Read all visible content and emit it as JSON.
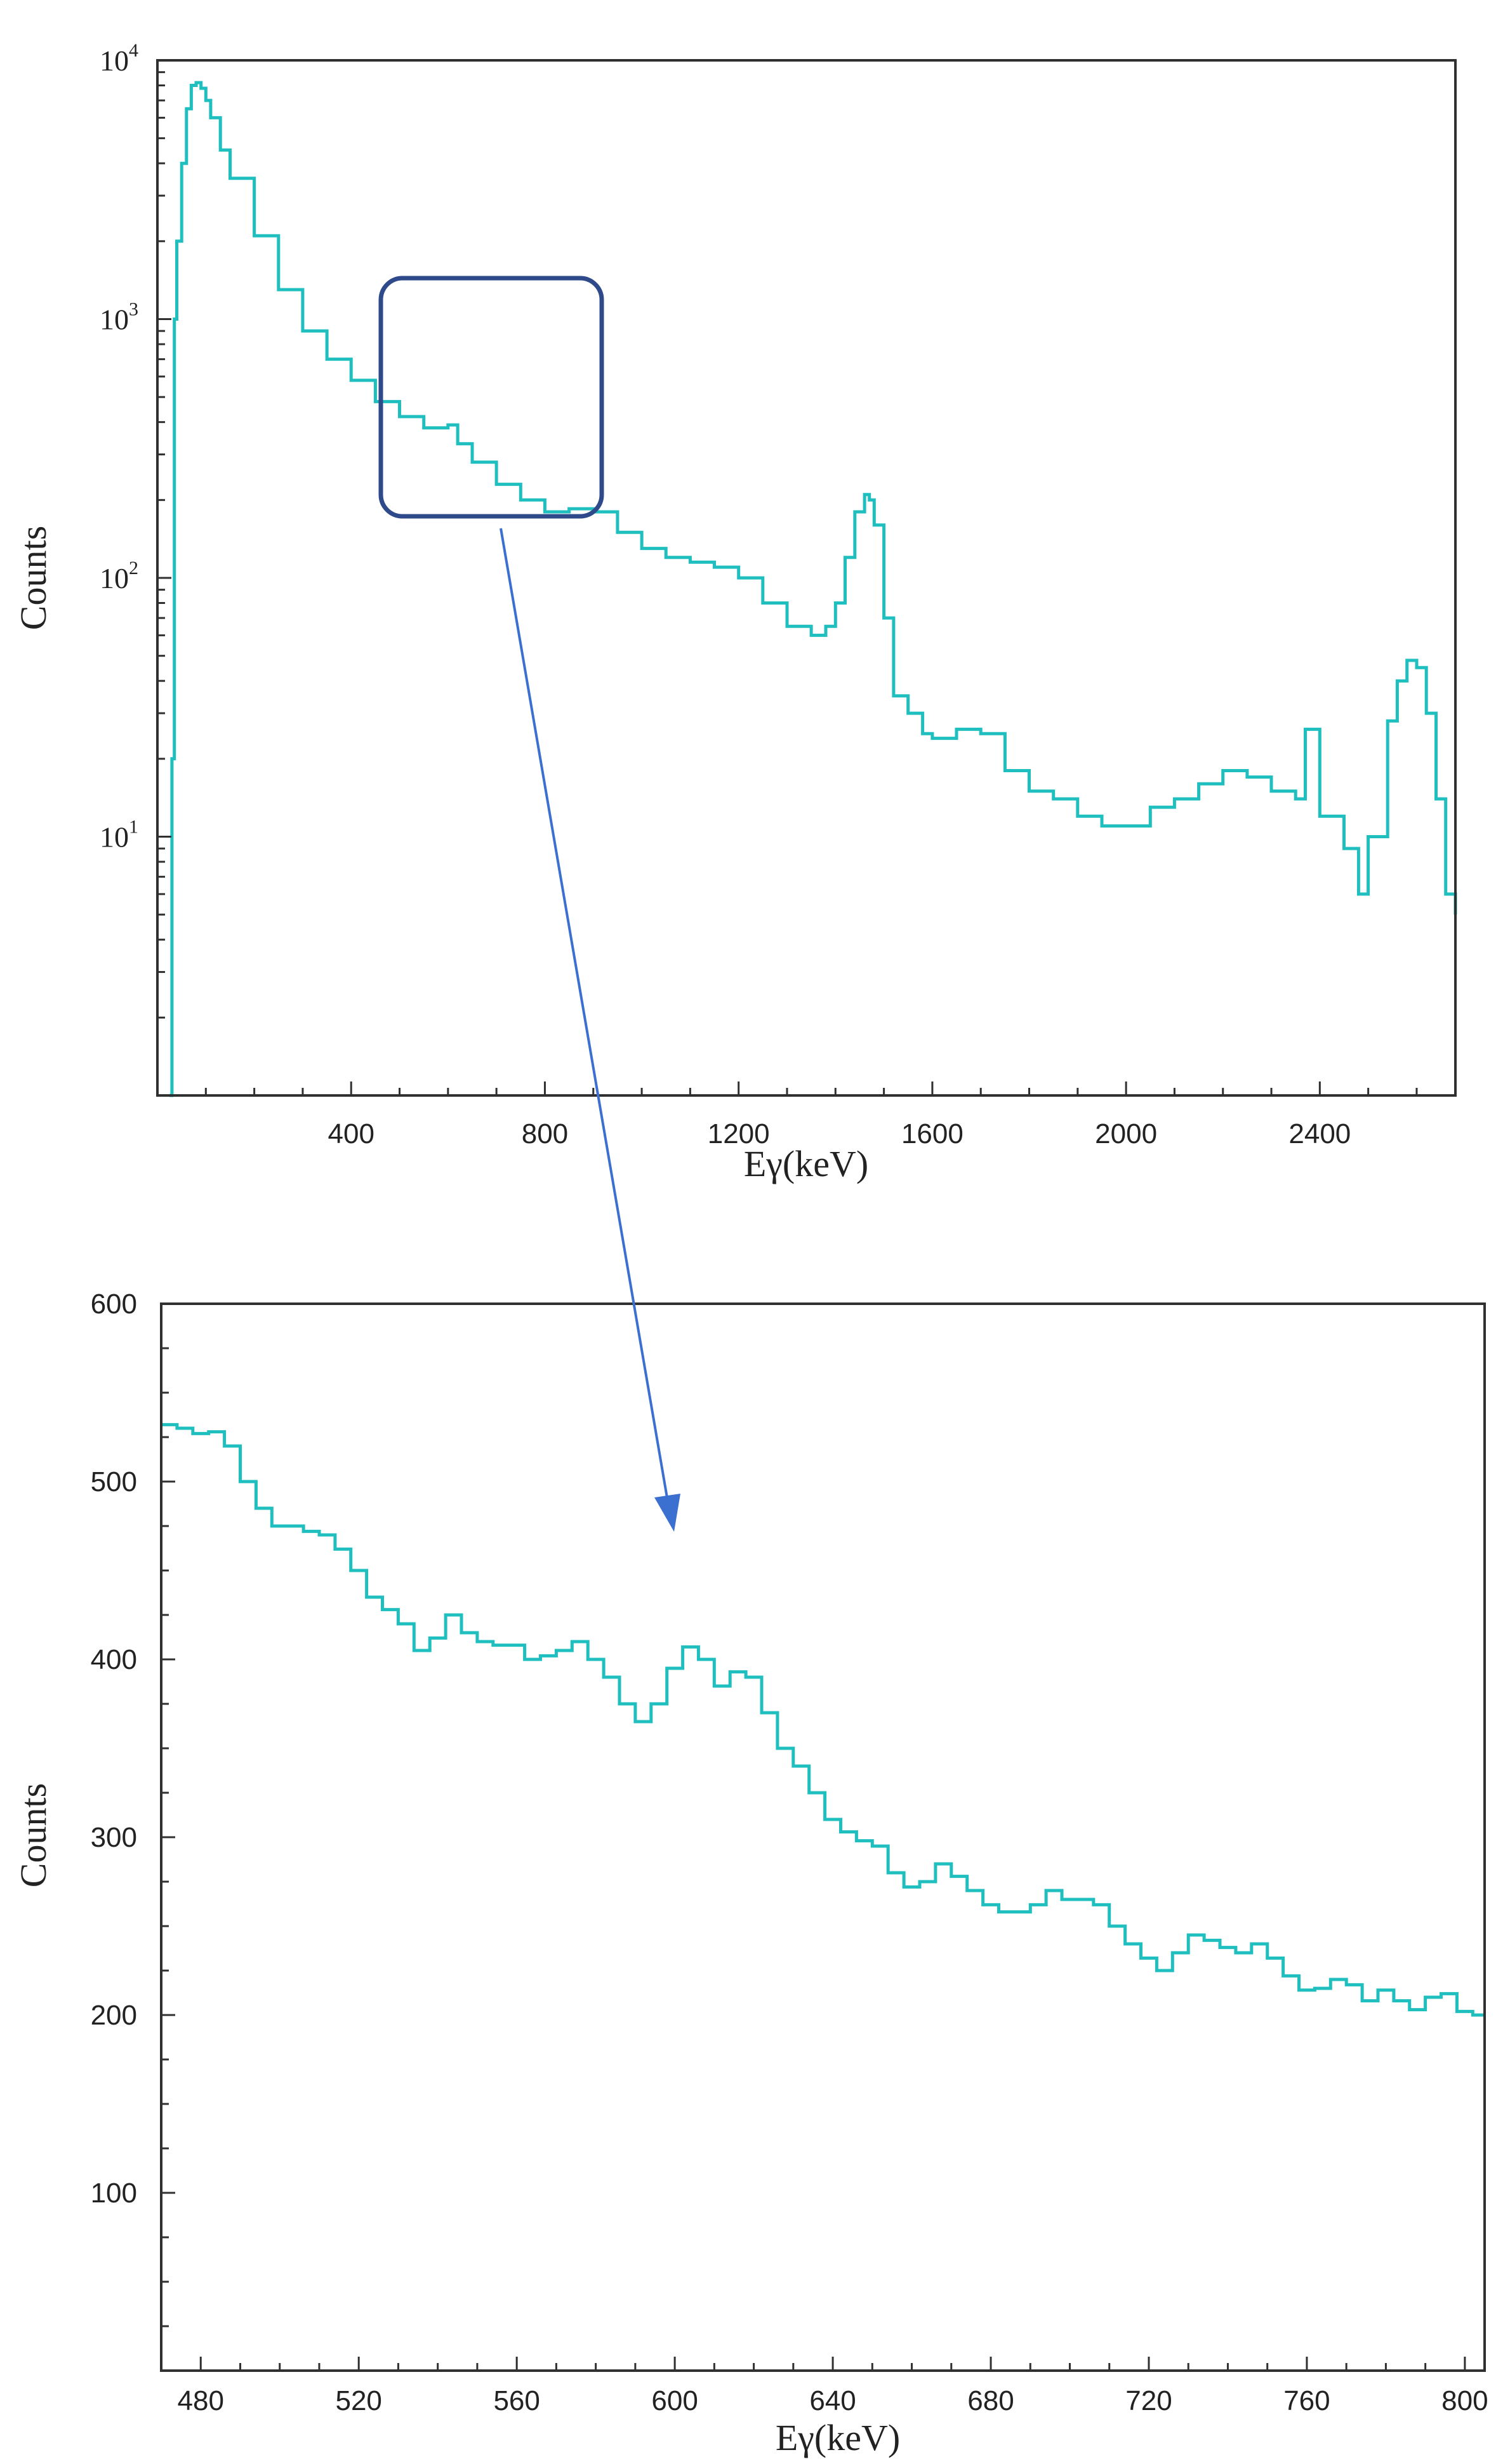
{
  "colors": {
    "trace": "#1fbfbf",
    "zoom_box": "#2f4a8a",
    "arrow": "#3b6fd0"
  },
  "annotation": {
    "type": "zoom-callout",
    "from_chart": 0,
    "to_chart": 1,
    "box_x_range_keV": [
      480,
      810
    ],
    "box_y_range_counts": [
      190,
      1050
    ]
  },
  "chart_data": [
    {
      "type": "line",
      "style": "step",
      "title": "",
      "xlabel": "Eγ(keV)",
      "ylabel": "Counts",
      "y_scale": "log",
      "xlim": [
        0,
        2680
      ],
      "ylim": [
        1,
        10000
      ],
      "x_ticks": [
        400,
        800,
        1200,
        1600,
        2000,
        2400
      ],
      "x_tick_labels": [
        "400",
        "800",
        "1200",
        "1600",
        "2000",
        "2400"
      ],
      "y_ticks": [
        10,
        100,
        1000,
        10000
      ],
      "y_tick_labels": [
        {
          "base": "10",
          "exp": "1"
        },
        {
          "base": "10",
          "exp": "2"
        },
        {
          "base": "10",
          "exp": "3"
        },
        {
          "base": "10",
          "exp": "4"
        }
      ],
      "grid": false,
      "legend": "none",
      "series": [
        {
          "x": [
            25,
            30,
            35,
            40,
            50,
            60,
            70,
            80,
            90,
            100,
            110,
            130,
            150,
            200,
            250,
            300,
            350,
            400,
            450,
            500,
            550,
            600,
            620,
            650,
            700,
            750,
            800,
            850,
            900,
            950,
            1000,
            1050,
            1100,
            1150,
            1200,
            1250,
            1300,
            1350,
            1380,
            1400,
            1420,
            1440,
            1460,
            1470,
            1480,
            1500,
            1520,
            1550,
            1580,
            1600,
            1650,
            1700,
            1750,
            1800,
            1850,
            1900,
            1950,
            2000,
            2050,
            2100,
            2150,
            2200,
            2250,
            2300,
            2350,
            2370,
            2400,
            2450,
            2480,
            2500,
            2540,
            2560,
            2580,
            2600,
            2620,
            2640,
            2660,
            2680
          ],
          "y": [
            1,
            20,
            1000,
            2000,
            4000,
            6500,
            8000,
            8200,
            7800,
            7000,
            6000,
            4500,
            3500,
            2100,
            1300,
            900,
            700,
            580,
            480,
            420,
            380,
            390,
            330,
            280,
            230,
            200,
            180,
            185,
            180,
            150,
            130,
            120,
            115,
            110,
            100,
            80,
            65,
            60,
            65,
            80,
            120,
            180,
            210,
            200,
            160,
            70,
            35,
            30,
            25,
            24,
            26,
            25,
            18,
            15,
            14,
            12,
            11,
            11,
            13,
            14,
            16,
            18,
            17,
            15,
            14,
            26,
            12,
            9,
            6,
            10,
            28,
            40,
            48,
            45,
            30,
            14,
            6,
            5
          ]
        }
      ]
    },
    {
      "type": "line",
      "style": "step",
      "title": "",
      "xlabel": "Eγ(keV)",
      "ylabel": "Counts",
      "y_scale": "linear",
      "xlim": [
        470,
        805
      ],
      "ylim": [
        0,
        600
      ],
      "x_ticks": [
        480,
        520,
        560,
        600,
        640,
        680,
        720,
        760,
        800
      ],
      "y_ticks": [
        100,
        200,
        300,
        400,
        500,
        600
      ],
      "grid": false,
      "legend": "none",
      "series": [
        {
          "x": [
            470,
            474,
            478,
            482,
            486,
            490,
            494,
            498,
            502,
            506,
            510,
            514,
            518,
            522,
            526,
            530,
            534,
            538,
            542,
            546,
            550,
            554,
            558,
            562,
            566,
            570,
            574,
            578,
            582,
            586,
            590,
            594,
            598,
            602,
            606,
            610,
            614,
            618,
            622,
            626,
            630,
            634,
            638,
            642,
            646,
            650,
            654,
            658,
            662,
            666,
            670,
            674,
            678,
            682,
            686,
            690,
            694,
            698,
            702,
            706,
            710,
            714,
            718,
            722,
            726,
            730,
            734,
            738,
            742,
            746,
            750,
            754,
            758,
            762,
            766,
            770,
            774,
            778,
            782,
            786,
            790,
            794,
            798,
            802
          ],
          "y": [
            532,
            530,
            527,
            528,
            520,
            500,
            485,
            475,
            475,
            472,
            470,
            462,
            450,
            435,
            428,
            420,
            405,
            412,
            425,
            415,
            410,
            408,
            408,
            400,
            402,
            405,
            410,
            400,
            390,
            375,
            365,
            375,
            395,
            407,
            400,
            385,
            393,
            390,
            370,
            350,
            340,
            325,
            310,
            303,
            298,
            295,
            280,
            272,
            275,
            285,
            278,
            270,
            262,
            258,
            258,
            262,
            270,
            265,
            265,
            262,
            250,
            240,
            232,
            225,
            235,
            245,
            242,
            238,
            235,
            240,
            232,
            222,
            214,
            215,
            220,
            217,
            208,
            214,
            208,
            203,
            210,
            212,
            202,
            200
          ]
        }
      ]
    }
  ]
}
